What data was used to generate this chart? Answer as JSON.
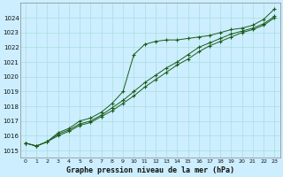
{
  "title": "Graphe pression niveau de la mer (hPa)",
  "bg_color": "#cceeff",
  "grid_color": "#aadddd",
  "line_color": "#1a5c1a",
  "x_ticks": [
    0,
    1,
    2,
    3,
    4,
    5,
    6,
    7,
    8,
    9,
    10,
    11,
    12,
    13,
    14,
    15,
    16,
    17,
    18,
    19,
    20,
    21,
    22,
    23
  ],
  "ylim_min": 1014.5,
  "ylim_max": 1025.0,
  "yticks": [
    1015,
    1016,
    1017,
    1018,
    1019,
    1020,
    1021,
    1022,
    1023,
    1024
  ],
  "series1": [
    1015.5,
    1015.3,
    1015.6,
    1016.2,
    1016.5,
    1017.0,
    1017.2,
    1017.6,
    1018.2,
    1019.0,
    1021.5,
    1022.2,
    1022.4,
    1022.5,
    1022.5,
    1022.6,
    1022.7,
    1022.8,
    1023.0,
    1023.2,
    1023.3,
    1023.5,
    1023.9,
    1024.6
  ],
  "series2": [
    1015.5,
    1015.3,
    1015.6,
    1016.1,
    1016.4,
    1016.8,
    1017.0,
    1017.4,
    1017.9,
    1018.4,
    1019.0,
    1019.6,
    1020.1,
    1020.6,
    1021.0,
    1021.5,
    1022.0,
    1022.3,
    1022.6,
    1022.9,
    1023.1,
    1023.3,
    1023.6,
    1024.1
  ],
  "series3": [
    1015.5,
    1015.3,
    1015.6,
    1016.0,
    1016.3,
    1016.7,
    1016.9,
    1017.3,
    1017.7,
    1018.2,
    1018.7,
    1019.3,
    1019.8,
    1020.3,
    1020.8,
    1021.2,
    1021.7,
    1022.1,
    1022.4,
    1022.7,
    1023.0,
    1023.2,
    1023.5,
    1024.0
  ]
}
